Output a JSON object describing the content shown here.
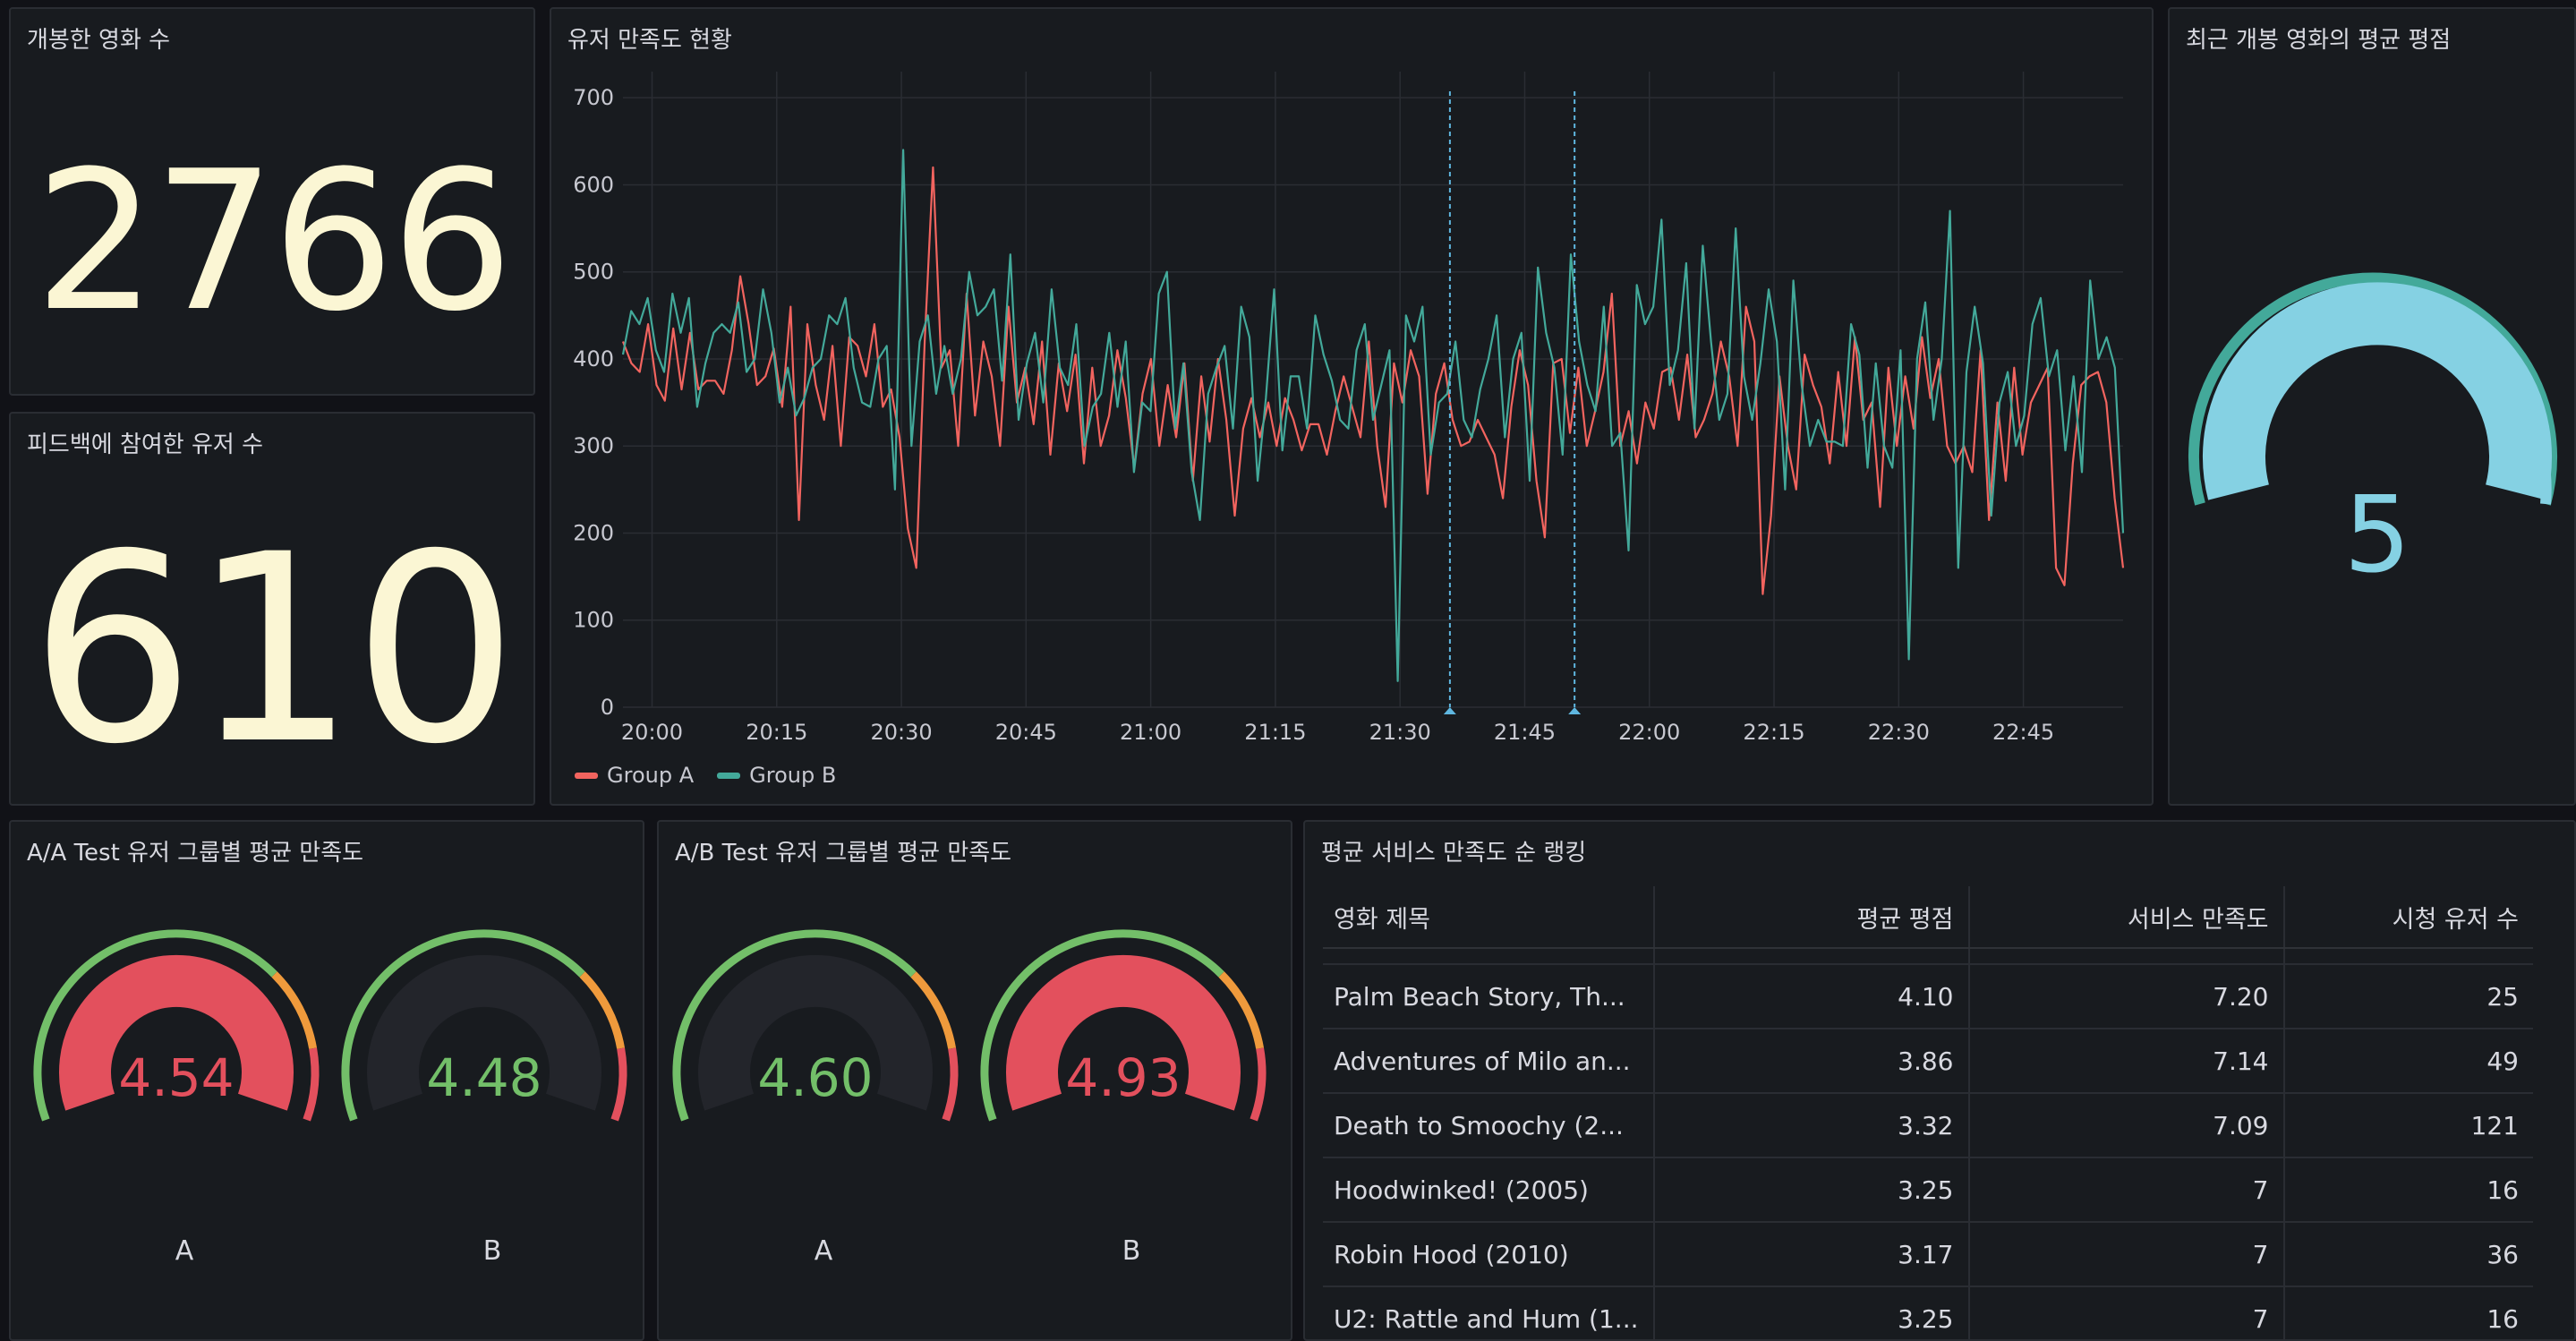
{
  "colors": {
    "group_a": "#f2645f",
    "group_b": "#43a99a",
    "stat_text": "#fbf6d4",
    "gauge_blue": "#85d1e3",
    "gauge_red": "#e3505d",
    "gauge_green": "#73bf69",
    "gauge_orange": "#ef9a3c"
  },
  "stats": {
    "released_movies": {
      "title": "개봉한 영화 수",
      "value": "2766"
    },
    "feedback_users": {
      "title": "피드백에 참여한 유저 수",
      "value": "610"
    }
  },
  "timeseries": {
    "title": "유저 만족도 현황",
    "legend": [
      {
        "name": "Group A"
      },
      {
        "name": "Group B"
      }
    ]
  },
  "chart_data": {
    "type": "line",
    "title": "유저 만족도 현황",
    "xlabel": "",
    "ylabel": "",
    "ylim": [
      0,
      730
    ],
    "yticks": [
      "0",
      "100",
      "200",
      "300",
      "400",
      "500",
      "600",
      "700"
    ],
    "xticks": [
      "20:00",
      "20:15",
      "20:30",
      "20:45",
      "21:00",
      "21:15",
      "21:30",
      "21:45",
      "22:00",
      "22:15",
      "22:30",
      "22:45"
    ],
    "x_start_min": -3.5,
    "x_end_min": 177,
    "annotation_markers_min": [
      96,
      111
    ],
    "series": [
      {
        "name": "Group A",
        "values": [
          420,
          395,
          385,
          440,
          370,
          352,
          435,
          365,
          430,
          365,
          375,
          375,
          360,
          410,
          495,
          440,
          370,
          380,
          412,
          345,
          460,
          215,
          440,
          370,
          330,
          415,
          300,
          425,
          415,
          380,
          440,
          345,
          365,
          310,
          205,
          160,
          420,
          620,
          390,
          410,
          300,
          475,
          335,
          420,
          380,
          300,
          460,
          350,
          390,
          325,
          420,
          290,
          395,
          340,
          405,
          280,
          390,
          300,
          335,
          410,
          355,
          275,
          360,
          400,
          300,
          370,
          310,
          395,
          260,
          380,
          305,
          400,
          330,
          220,
          320,
          355,
          310,
          350,
          300,
          355,
          330,
          295,
          325,
          325,
          290,
          340,
          380,
          345,
          310,
          420,
          300,
          230,
          395,
          350,
          410,
          380,
          245,
          360,
          395,
          330,
          300,
          305,
          330,
          310,
          290,
          240,
          345,
          410,
          370,
          260,
          195,
          395,
          400,
          315,
          390,
          300,
          340,
          385,
          475,
          300,
          340,
          280,
          350,
          320,
          385,
          390,
          330,
          405,
          310,
          330,
          360,
          420,
          380,
          300,
          460,
          420,
          130,
          220,
          380,
          300,
          250,
          405,
          370,
          345,
          280,
          385,
          300,
          425,
          330,
          350,
          230,
          390,
          300,
          380,
          320,
          425,
          355,
          400,
          300,
          280,
          300,
          270,
          410,
          215,
          350,
          260,
          390,
          290,
          350,
          370,
          390,
          160,
          140,
          280,
          370,
          380,
          385,
          350,
          240,
          160
        ]
      },
      {
        "name": "Group B",
        "values": [
          405,
          455,
          440,
          470,
          410,
          385,
          475,
          430,
          470,
          345,
          395,
          430,
          440,
          430,
          465,
          385,
          400,
          480,
          430,
          350,
          390,
          335,
          355,
          390,
          400,
          450,
          440,
          470,
          390,
          350,
          345,
          400,
          415,
          250,
          640,
          300,
          420,
          450,
          360,
          415,
          360,
          400,
          500,
          450,
          460,
          480,
          375,
          520,
          330,
          395,
          430,
          350,
          480,
          390,
          370,
          440,
          300,
          345,
          360,
          430,
          345,
          420,
          270,
          350,
          340,
          475,
          500,
          320,
          395,
          270,
          215,
          360,
          390,
          415,
          320,
          460,
          425,
          260,
          355,
          480,
          295,
          380,
          380,
          320,
          450,
          405,
          375,
          330,
          320,
          410,
          440,
          330,
          370,
          410,
          30,
          450,
          420,
          460,
          290,
          350,
          360,
          420,
          330,
          310,
          365,
          400,
          450,
          310,
          400,
          430,
          260,
          505,
          430,
          390,
          290,
          520,
          420,
          370,
          340,
          460,
          300,
          315,
          180,
          485,
          440,
          460,
          560,
          370,
          410,
          510,
          320,
          530,
          420,
          330,
          360,
          550,
          380,
          330,
          395,
          480,
          420,
          250,
          490,
          370,
          300,
          330,
          305,
          305,
          300,
          440,
          405,
          275,
          395,
          300,
          275,
          410,
          55,
          400,
          465,
          330,
          400,
          570,
          160,
          385,
          460,
          395,
          220,
          350,
          385,
          300,
          335,
          440,
          470,
          380,
          410,
          295,
          380,
          270,
          490,
          400,
          425,
          390,
          200
        ]
      }
    ]
  },
  "top_gauge": {
    "title": "최근 개봉 영화의 평균 평점",
    "value": "5",
    "fraction": 1.0
  },
  "aa_test": {
    "title": "A/A Test 유저 그룹별 평균 만족도",
    "gauges": [
      {
        "label": "A",
        "value": "4.54",
        "fraction": 1.0,
        "style": "filled"
      },
      {
        "label": "B",
        "value": "4.48",
        "fraction": 0.0,
        "style": "empty"
      }
    ]
  },
  "ab_test": {
    "title": "A/B Test 유저 그룹별 평균 만족도",
    "gauges": [
      {
        "label": "A",
        "value": "4.60",
        "fraction": 0.0,
        "style": "empty"
      },
      {
        "label": "B",
        "value": "4.93",
        "fraction": 1.0,
        "style": "filled"
      }
    ]
  },
  "ranking": {
    "title": "평균 서비스 만족도 순 랭킹",
    "columns": [
      "영화 제목",
      "평균 평점",
      "서비스 만족도",
      "시청 유저 수"
    ],
    "rows": [
      [
        "Palm Beach Story, Th...",
        "4.10",
        "7.20",
        "25"
      ],
      [
        "Adventures of Milo an...",
        "3.86",
        "7.14",
        "49"
      ],
      [
        "Death to Smoochy (2...",
        "3.32",
        "7.09",
        "121"
      ],
      [
        "Hoodwinked! (2005)",
        "3.25",
        "7",
        "16"
      ],
      [
        "Robin Hood (2010)",
        "3.17",
        "7",
        "36"
      ],
      [
        "U2: Rattle and Hum (1...",
        "3.25",
        "7",
        "16"
      ]
    ]
  }
}
